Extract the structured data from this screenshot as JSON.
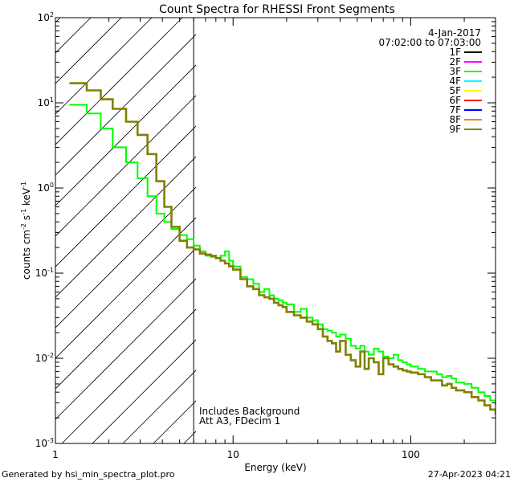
{
  "chart_data": {
    "type": "line",
    "title": "Count Spectra for RHESSI Front Segments",
    "xlabel": "Energy (keV)",
    "ylabel_parts": [
      "counts cm",
      "-2",
      " s",
      "-1",
      " keV",
      "-1"
    ],
    "x_scale": "log",
    "y_scale": "log",
    "xlim": [
      1,
      300
    ],
    "ylim": [
      0.001,
      100
    ],
    "x_ticks": [
      {
        "v": 1,
        "label": "1"
      },
      {
        "v": 10,
        "label": "10"
      },
      {
        "v": 100,
        "label": "100"
      }
    ],
    "y_ticks": [
      {
        "v": 100,
        "base": "10",
        "exp": "2"
      },
      {
        "v": 10,
        "base": "10",
        "exp": "1"
      },
      {
        "v": 1,
        "base": "10",
        "exp": "0"
      },
      {
        "v": 0.1,
        "base": "10",
        "exp": "-1"
      },
      {
        "v": 0.01,
        "base": "10",
        "exp": "-2"
      },
      {
        "v": 0.001,
        "base": "10",
        "exp": "-3"
      }
    ],
    "date": "4-Jan-2017",
    "time_range": "07:02:00 to 07:03:00",
    "legend": [
      {
        "name": "1F",
        "color": "#000000"
      },
      {
        "name": "2F",
        "color": "#ff00ff"
      },
      {
        "name": "3F",
        "color": "#00ff00"
      },
      {
        "name": "4F",
        "color": "#00ffff"
      },
      {
        "name": "5F",
        "color": "#ffff00"
      },
      {
        "name": "6F",
        "color": "#ff0000"
      },
      {
        "name": "7F",
        "color": "#0000ff"
      },
      {
        "name": "8F",
        "color": "#ff7f00"
      },
      {
        "name": "9F",
        "color": "#808000"
      }
    ],
    "attenuator_boundary_kev": 6,
    "annotations": [
      "Includes Background",
      "Att A3, FDecim  1"
    ],
    "series": [
      {
        "name": "3F",
        "color": "#00ff00",
        "x": [
          1.2,
          1.5,
          1.8,
          2.1,
          2.5,
          2.9,
          3.3,
          3.7,
          4.1,
          4.5,
          5.0,
          5.5,
          6,
          6.5,
          7,
          7.5,
          8,
          8.5,
          9,
          9.5,
          10,
          11,
          12,
          13,
          14,
          15,
          16,
          17,
          18,
          19,
          20,
          22,
          24,
          26,
          28,
          30,
          32,
          34,
          36,
          38,
          40,
          43,
          46,
          49,
          52,
          55,
          58,
          62,
          66,
          70,
          75,
          80,
          85,
          90,
          95,
          100,
          110,
          120,
          130,
          140,
          150,
          160,
          170,
          180,
          200,
          220,
          240,
          260,
          280,
          300
        ],
        "y": [
          9.5,
          7.5,
          5.0,
          3.0,
          2.0,
          1.3,
          0.8,
          0.5,
          0.4,
          0.33,
          0.28,
          0.25,
          0.21,
          0.18,
          0.16,
          0.155,
          0.15,
          0.16,
          0.18,
          0.14,
          0.12,
          0.09,
          0.085,
          0.075,
          0.06,
          0.065,
          0.055,
          0.05,
          0.048,
          0.045,
          0.043,
          0.035,
          0.038,
          0.03,
          0.028,
          0.025,
          0.022,
          0.021,
          0.02,
          0.018,
          0.019,
          0.017,
          0.014,
          0.013,
          0.014,
          0.012,
          0.011,
          0.013,
          0.012,
          0.0105,
          0.01,
          0.011,
          0.0095,
          0.009,
          0.0085,
          0.008,
          0.0075,
          0.007,
          0.007,
          0.0065,
          0.006,
          0.0062,
          0.0058,
          0.0052,
          0.005,
          0.0045,
          0.004,
          0.0036,
          0.0032,
          0.0028
        ]
      },
      {
        "name": "9F",
        "color": "#808000",
        "x": [
          1.2,
          1.5,
          1.8,
          2.1,
          2.5,
          2.9,
          3.3,
          3.7,
          4.1,
          4.5,
          5.0,
          5.5,
          6,
          6.5,
          7,
          7.5,
          8,
          8.5,
          9,
          9.5,
          10,
          11,
          12,
          13,
          14,
          15,
          16,
          17,
          18,
          19,
          20,
          22,
          24,
          26,
          28,
          30,
          32,
          34,
          36,
          38,
          40,
          43,
          46,
          49,
          52,
          55,
          58,
          62,
          66,
          70,
          75,
          80,
          85,
          90,
          95,
          100,
          110,
          120,
          130,
          140,
          150,
          160,
          170,
          180,
          200,
          220,
          240,
          260,
          280,
          300
        ],
        "y": [
          17,
          14,
          11,
          8.5,
          6.0,
          4.2,
          2.5,
          1.2,
          0.6,
          0.35,
          0.24,
          0.2,
          0.19,
          0.17,
          0.165,
          0.16,
          0.15,
          0.14,
          0.13,
          0.12,
          0.11,
          0.085,
          0.07,
          0.065,
          0.055,
          0.052,
          0.05,
          0.045,
          0.042,
          0.04,
          0.035,
          0.032,
          0.03,
          0.027,
          0.025,
          0.022,
          0.018,
          0.016,
          0.015,
          0.012,
          0.016,
          0.011,
          0.0095,
          0.008,
          0.012,
          0.0075,
          0.01,
          0.009,
          0.0065,
          0.01,
          0.0085,
          0.008,
          0.0075,
          0.0072,
          0.007,
          0.0068,
          0.0065,
          0.006,
          0.0055,
          0.0055,
          0.0048,
          0.005,
          0.0045,
          0.0042,
          0.004,
          0.0035,
          0.0032,
          0.0028,
          0.0025,
          0.0022
        ]
      }
    ]
  },
  "footer": {
    "generator": "Generated by hsi_min_spectra_plot.pro",
    "timestamp": "27-Apr-2023 04:21"
  }
}
